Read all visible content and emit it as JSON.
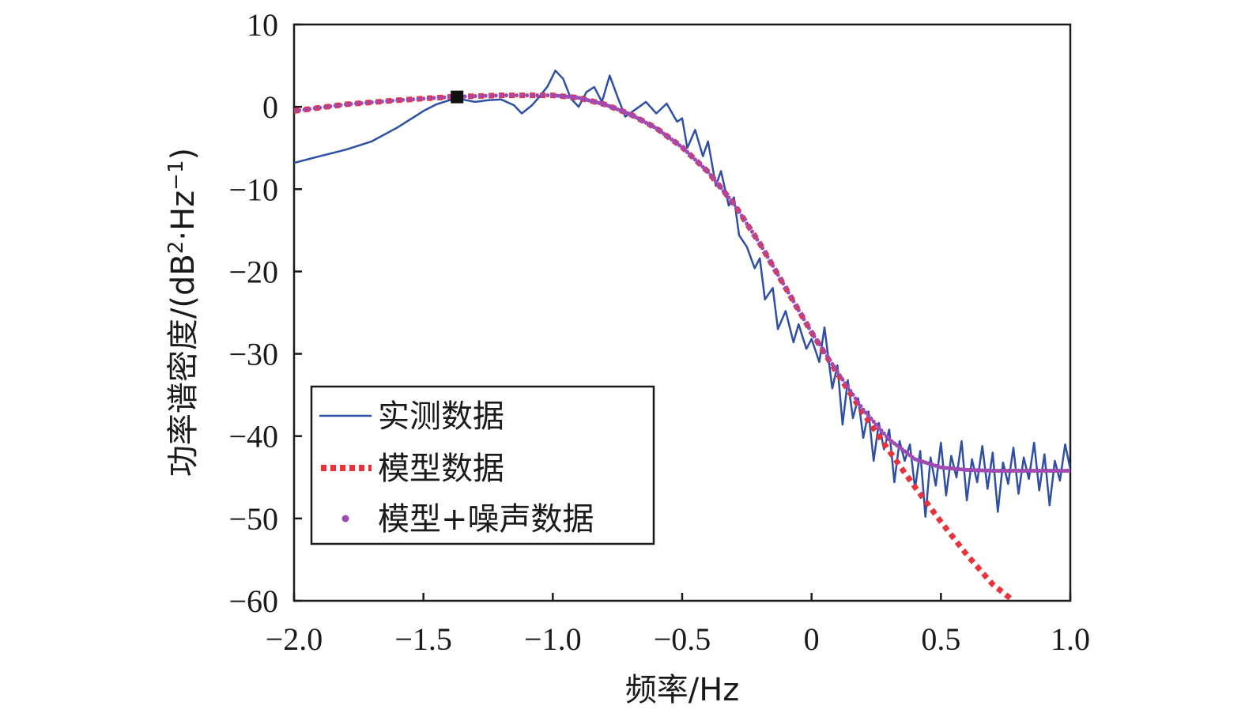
{
  "chart_data": {
    "type": "line",
    "title": "",
    "xlabel": "频率/Hz",
    "ylabel": {
      "prefix": "功率谱密度/(dB",
      "sup1": "2",
      "mid": "·Hz",
      "sup2": "−1",
      "suffix": ")"
    },
    "xlim": [
      -2.0,
      1.0
    ],
    "ylim": [
      -60,
      10
    ],
    "x_tick_labels": [
      "−2.0",
      "−1.5",
      "−1.0",
      "−0.5",
      "0",
      "0.5",
      "1.0"
    ],
    "y_tick_labels": [
      "10",
      "0",
      "−10",
      "−20",
      "−30",
      "−40",
      "−50",
      "−60"
    ],
    "grid": false,
    "legend_position": "lower-left",
    "series": [
      {
        "name": "实测数据",
        "style": "solid-line",
        "color": "#2e4fa3",
        "points": [
          [
            -2.0,
            -6.8
          ],
          [
            -1.9,
            -6.0
          ],
          [
            -1.8,
            -5.2
          ],
          [
            -1.7,
            -4.2
          ],
          [
            -1.6,
            -2.5
          ],
          [
            -1.5,
            -0.5
          ],
          [
            -1.45,
            0.3
          ],
          [
            -1.4,
            0.8
          ],
          [
            -1.35,
            0.9
          ],
          [
            -1.3,
            0.6
          ],
          [
            -1.25,
            0.8
          ],
          [
            -1.2,
            0.9
          ],
          [
            -1.15,
            0.2
          ],
          [
            -1.12,
            -0.8
          ],
          [
            -1.08,
            0.2
          ],
          [
            -1.05,
            1.3
          ],
          [
            -1.02,
            2.5
          ],
          [
            -0.99,
            4.4
          ],
          [
            -0.96,
            3.4
          ],
          [
            -0.93,
            1.0
          ],
          [
            -0.9,
            0.0
          ],
          [
            -0.87,
            1.8
          ],
          [
            -0.84,
            2.4
          ],
          [
            -0.81,
            0.6
          ],
          [
            -0.78,
            3.8
          ],
          [
            -0.75,
            1.2
          ],
          [
            -0.72,
            -1.2
          ],
          [
            -0.68,
            -0.3
          ],
          [
            -0.64,
            0.6
          ],
          [
            -0.6,
            -0.8
          ],
          [
            -0.56,
            0.4
          ],
          [
            -0.52,
            -1.8
          ],
          [
            -0.5,
            -1.4
          ],
          [
            -0.48,
            -5.0
          ],
          [
            -0.45,
            -2.8
          ],
          [
            -0.42,
            -6.0
          ],
          [
            -0.4,
            -4.2
          ],
          [
            -0.37,
            -9.6
          ],
          [
            -0.35,
            -7.8
          ],
          [
            -0.32,
            -12.0
          ],
          [
            -0.3,
            -11.0
          ],
          [
            -0.28,
            -15.6
          ],
          [
            -0.25,
            -17.0
          ],
          [
            -0.22,
            -19.6
          ],
          [
            -0.2,
            -18.4
          ],
          [
            -0.18,
            -23.4
          ],
          [
            -0.15,
            -22.0
          ],
          [
            -0.13,
            -27.0
          ],
          [
            -0.1,
            -24.8
          ],
          [
            -0.07,
            -28.6
          ],
          [
            -0.05,
            -26.4
          ],
          [
            -0.02,
            -29.4
          ],
          [
            0.0,
            -28.2
          ],
          [
            0.03,
            -31.0
          ],
          [
            0.05,
            -26.8
          ],
          [
            0.08,
            -34.2
          ],
          [
            0.1,
            -31.4
          ],
          [
            0.12,
            -38.6
          ],
          [
            0.14,
            -33.2
          ],
          [
            0.16,
            -37.8
          ],
          [
            0.18,
            -35.4
          ],
          [
            0.2,
            -40.2
          ],
          [
            0.22,
            -37.0
          ],
          [
            0.24,
            -43.0
          ],
          [
            0.26,
            -38.4
          ],
          [
            0.28,
            -41.6
          ],
          [
            0.3,
            -39.2
          ],
          [
            0.32,
            -45.6
          ],
          [
            0.34,
            -40.6
          ],
          [
            0.36,
            -43.0
          ],
          [
            0.38,
            -41.0
          ],
          [
            0.4,
            -46.4
          ],
          [
            0.42,
            -41.8
          ],
          [
            0.44,
            -49.8
          ],
          [
            0.46,
            -42.6
          ],
          [
            0.48,
            -46.0
          ],
          [
            0.5,
            -40.8
          ],
          [
            0.52,
            -47.2
          ],
          [
            0.54,
            -42.4
          ],
          [
            0.56,
            -45.0
          ],
          [
            0.58,
            -40.6
          ],
          [
            0.6,
            -47.8
          ],
          [
            0.62,
            -42.8
          ],
          [
            0.64,
            -45.6
          ],
          [
            0.66,
            -41.2
          ],
          [
            0.68,
            -46.4
          ],
          [
            0.7,
            -42.0
          ],
          [
            0.72,
            -49.2
          ],
          [
            0.74,
            -43.2
          ],
          [
            0.76,
            -45.8
          ],
          [
            0.78,
            -41.4
          ],
          [
            0.8,
            -47.0
          ],
          [
            0.82,
            -42.6
          ],
          [
            0.84,
            -45.2
          ],
          [
            0.86,
            -40.8
          ],
          [
            0.88,
            -46.6
          ],
          [
            0.9,
            -42.2
          ],
          [
            0.92,
            -48.4
          ],
          [
            0.94,
            -43.0
          ],
          [
            0.96,
            -45.4
          ],
          [
            0.98,
            -41.0
          ],
          [
            1.0,
            -44.0
          ]
        ]
      },
      {
        "name": "模型数据",
        "style": "dotted-line",
        "color": "#e8323c",
        "points": [
          [
            -2.0,
            -0.5
          ],
          [
            -1.8,
            0.3
          ],
          [
            -1.6,
            0.8
          ],
          [
            -1.4,
            1.2
          ],
          [
            -1.2,
            1.4
          ],
          [
            -1.0,
            1.4
          ],
          [
            -0.9,
            1.1
          ],
          [
            -0.8,
            0.3
          ],
          [
            -0.7,
            -0.9
          ],
          [
            -0.6,
            -2.6
          ],
          [
            -0.5,
            -4.9
          ],
          [
            -0.4,
            -7.9
          ],
          [
            -0.3,
            -11.8
          ],
          [
            -0.2,
            -16.6
          ],
          [
            -0.1,
            -22.0
          ],
          [
            0.0,
            -27.4
          ],
          [
            0.1,
            -32.4
          ],
          [
            0.2,
            -37.2
          ],
          [
            0.3,
            -41.8
          ],
          [
            0.4,
            -46.2
          ],
          [
            0.5,
            -50.4
          ],
          [
            0.6,
            -54.4
          ],
          [
            0.7,
            -58.0
          ],
          [
            0.78,
            -60.0
          ]
        ]
      },
      {
        "name": "模型+噪声数据",
        "style": "dots",
        "color": "#a04bb4",
        "points": [
          [
            -2.0,
            -0.5
          ],
          [
            -1.8,
            0.3
          ],
          [
            -1.6,
            0.8
          ],
          [
            -1.4,
            1.2
          ],
          [
            -1.2,
            1.4
          ],
          [
            -1.0,
            1.4
          ],
          [
            -0.9,
            1.1
          ],
          [
            -0.8,
            0.3
          ],
          [
            -0.7,
            -0.9
          ],
          [
            -0.6,
            -2.6
          ],
          [
            -0.5,
            -4.9
          ],
          [
            -0.4,
            -7.9
          ],
          [
            -0.3,
            -11.8
          ],
          [
            -0.2,
            -16.6
          ],
          [
            -0.1,
            -22.0
          ],
          [
            0.0,
            -27.4
          ],
          [
            0.1,
            -32.2
          ],
          [
            0.2,
            -36.8
          ],
          [
            0.3,
            -40.4
          ],
          [
            0.4,
            -42.8
          ],
          [
            0.5,
            -43.8
          ],
          [
            0.6,
            -44.1
          ],
          [
            0.7,
            -44.2
          ],
          [
            0.8,
            -44.2
          ],
          [
            0.9,
            -44.2
          ],
          [
            1.0,
            -44.2
          ]
        ]
      }
    ],
    "marker": {
      "shape": "square",
      "color": "#111111",
      "x": -1.37,
      "y": 1.2
    }
  }
}
